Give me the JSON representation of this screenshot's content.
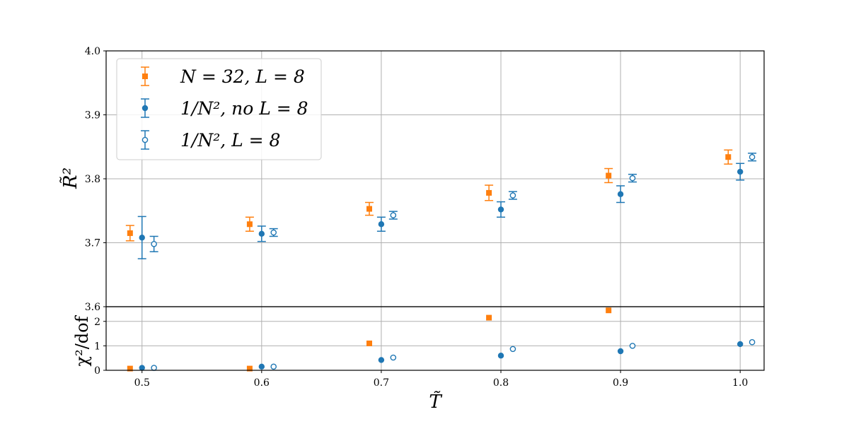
{
  "chart_data": [
    {
      "type": "scatter",
      "panel": "top",
      "ylabel": "R̃²",
      "ylim": [
        3.6,
        4.0
      ],
      "xlim": [
        0.47,
        1.02
      ],
      "x_ticks": [
        "0.5",
        "0.6",
        "0.7",
        "0.8",
        "0.9",
        "1.0"
      ],
      "y_ticks": [
        "3.6",
        "3.7",
        "3.8",
        "3.9",
        "4.0"
      ],
      "grid": true,
      "legend_position": "top-left",
      "series": [
        {
          "name": "N = 32, L = 8",
          "marker": "square-filled",
          "color": "#ff7f0e",
          "x": [
            0.49,
            0.59,
            0.69,
            0.79,
            0.89,
            0.99
          ],
          "y": [
            3.715,
            3.729,
            3.753,
            3.778,
            3.805,
            3.834
          ],
          "err": [
            0.012,
            0.011,
            0.01,
            0.012,
            0.011,
            0.011
          ]
        },
        {
          "name": "1/N², no L = 8",
          "marker": "circle-filled",
          "color": "#1f77b4",
          "x": [
            0.5,
            0.6,
            0.7,
            0.8,
            0.9,
            1.0
          ],
          "y": [
            3.708,
            3.714,
            3.729,
            3.752,
            3.776,
            3.811
          ],
          "err": [
            0.033,
            0.012,
            0.011,
            0.012,
            0.013,
            0.013
          ]
        },
        {
          "name": "1/N², L = 8",
          "marker": "circle-open",
          "color": "#1f77b4",
          "x": [
            0.51,
            0.61,
            0.71,
            0.81,
            0.91,
            1.01
          ],
          "y": [
            3.698,
            3.716,
            3.743,
            3.774,
            3.801,
            3.834
          ],
          "err": [
            0.012,
            0.006,
            0.006,
            0.006,
            0.006,
            0.006
          ]
        }
      ]
    },
    {
      "type": "scatter",
      "panel": "bottom",
      "xlabel": "T̃",
      "ylabel": "χ²/dof",
      "ylim": [
        0,
        2.6
      ],
      "xlim": [
        0.47,
        1.02
      ],
      "x_ticks": [
        "0.5",
        "0.6",
        "0.7",
        "0.8",
        "0.9",
        "1.0"
      ],
      "y_ticks": [
        "0",
        "1",
        "2"
      ],
      "grid": true,
      "series": [
        {
          "name": "N = 32, L = 8",
          "marker": "square-filled",
          "color": "#ff7f0e",
          "x": [
            0.49,
            0.59,
            0.69,
            0.79,
            0.89
          ],
          "y": [
            0.07,
            0.07,
            1.1,
            2.15,
            2.45
          ]
        },
        {
          "name": "1/N², no L = 8",
          "marker": "circle-filled",
          "color": "#1f77b4",
          "x": [
            0.5,
            0.6,
            0.7,
            0.8,
            0.9,
            1.0
          ],
          "y": [
            0.1,
            0.15,
            0.42,
            0.6,
            0.78,
            1.07
          ]
        },
        {
          "name": "1/N², L = 8",
          "marker": "circle-open",
          "color": "#1f77b4",
          "x": [
            0.51,
            0.61,
            0.71,
            0.81,
            0.91,
            1.01
          ],
          "y": [
            0.1,
            0.15,
            0.52,
            0.87,
            1.0,
            1.15
          ]
        }
      ]
    }
  ],
  "legend": {
    "entries": [
      {
        "label": "N = 32, L = 8"
      },
      {
        "label": "1/N², no L = 8"
      },
      {
        "label": "1/N², L = 8"
      }
    ]
  },
  "labels": {
    "top_ylabel": "R̃²",
    "bottom_ylabel": "χ²/dof",
    "xlabel": "T̃"
  }
}
